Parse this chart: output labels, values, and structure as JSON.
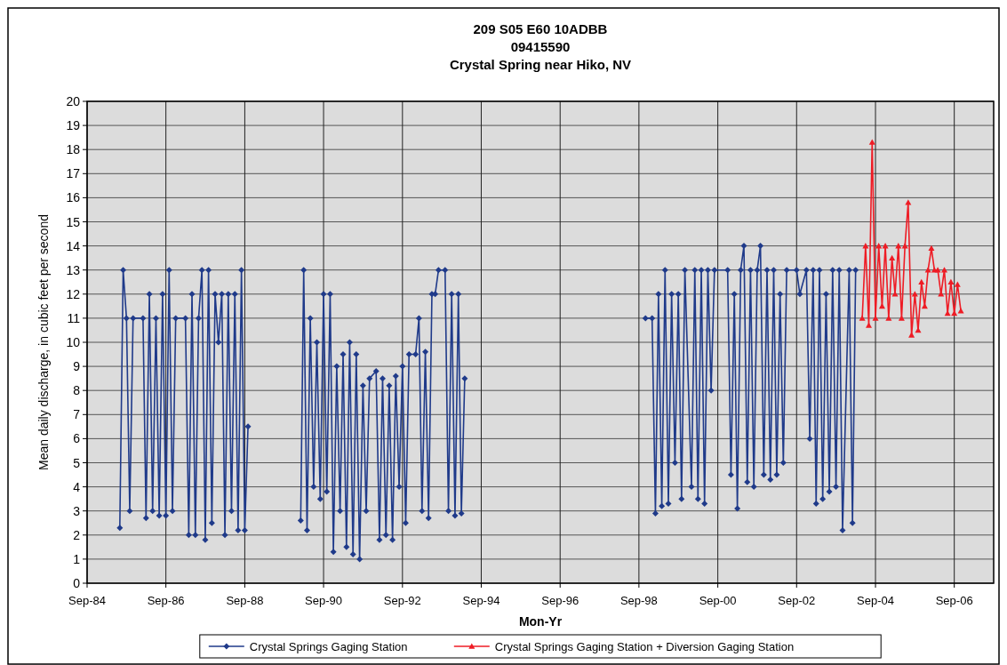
{
  "chart_data": {
    "type": "line",
    "title": "209 S05 E60 10ADBB\n09415590\nCrystal Spring near Hiko, NV",
    "xlabel": "Mon-Yr",
    "ylabel": "Mean daily discharge, in cubic feet per second",
    "xlim": [
      "1984-09",
      "2007-09"
    ],
    "xticks": [
      {
        "value": "1984-09",
        "label": "Sep-84"
      },
      {
        "value": "1986-09",
        "label": "Sep-86"
      },
      {
        "value": "1988-09",
        "label": "Sep-88"
      },
      {
        "value": "1990-09",
        "label": "Sep-90"
      },
      {
        "value": "1992-09",
        "label": "Sep-92"
      },
      {
        "value": "1994-09",
        "label": "Sep-94"
      },
      {
        "value": "1996-09",
        "label": "Sep-96"
      },
      {
        "value": "1998-09",
        "label": "Sep-98"
      },
      {
        "value": "2000-09",
        "label": "Sep-00"
      },
      {
        "value": "2002-09",
        "label": "Sep-02"
      },
      {
        "value": "2004-09",
        "label": "Sep-04"
      },
      {
        "value": "2006-09",
        "label": "Sep-06"
      }
    ],
    "ylim": [
      0,
      20
    ],
    "yticks": [
      0,
      1,
      2,
      3,
      4,
      5,
      6,
      7,
      8,
      9,
      10,
      11,
      12,
      13,
      14,
      15,
      16,
      17,
      18,
      19,
      20
    ],
    "grid": true,
    "legend": "bottom",
    "line_style": "solid",
    "series": [
      {
        "name": "Crystal Springs Gaging Station",
        "color": "#1f3a8a",
        "marker": "diamond",
        "x": [
          "1985-07",
          "1985-08",
          "1985-09",
          "1985-10",
          "1985-11",
          "1986-02",
          "1986-03",
          "1986-04",
          "1986-05",
          "1986-06",
          "1986-07",
          "1986-08",
          "1986-09",
          "1986-10",
          "1986-11",
          "1986-12",
          "1987-03",
          "1987-04",
          "1987-05",
          "1987-06",
          "1987-07",
          "1987-08",
          "1987-09",
          "1987-10",
          "1987-11",
          "1987-12",
          "1988-01",
          "1988-02",
          "1988-03",
          "1988-04",
          "1988-05",
          "1988-06",
          "1988-07",
          "1988-08",
          "1988-09",
          "1988-10",
          "1989-06",
          "1990-02",
          "1990-03",
          "1990-04",
          "1990-05",
          "1990-06",
          "1990-07",
          "1990-08",
          "1990-09",
          "1990-10",
          "1990-11",
          "1990-12",
          "1991-01",
          "1991-02",
          "1991-03",
          "1991-04",
          "1991-05",
          "1991-06",
          "1991-07",
          "1991-08",
          "1991-09",
          "1991-10",
          "1991-11",
          "1992-01",
          "1992-02",
          "1992-03",
          "1992-04",
          "1992-05",
          "1992-06",
          "1992-07",
          "1992-08",
          "1992-09",
          "1992-10",
          "1992-11",
          "1993-01",
          "1993-02",
          "1993-03",
          "1993-04",
          "1993-05",
          "1993-06",
          "1993-07",
          "1993-08",
          "1993-10",
          "1993-11",
          "1993-12",
          "1994-01",
          "1994-02",
          "1994-03",
          "1994-04",
          "1996-09",
          "1998-11",
          "1999-01",
          "1999-02",
          "1999-03",
          "1999-04",
          "1999-05",
          "1999-06",
          "1999-07",
          "1999-08",
          "1999-09",
          "1999-10",
          "1999-11",
          "2000-01",
          "2000-02",
          "2000-03",
          "2000-04",
          "2000-05",
          "2000-06",
          "2000-07",
          "2000-08",
          "2000-12",
          "2001-01",
          "2001-02",
          "2001-03",
          "2001-04",
          "2001-05",
          "2001-06",
          "2001-07",
          "2001-08",
          "2001-09",
          "2001-10",
          "2001-11",
          "2001-12",
          "2002-01",
          "2002-02",
          "2002-03",
          "2002-04",
          "2002-05",
          "2002-06",
          "2002-09",
          "2002-10",
          "2002-12",
          "2003-01",
          "2003-02",
          "2003-03",
          "2003-04",
          "2003-05",
          "2003-06",
          "2003-07",
          "2003-08",
          "2003-09",
          "2003-10",
          "2003-11",
          "2004-01",
          "2004-02",
          "2004-03"
        ],
        "values": [
          2.3,
          13,
          11,
          3,
          11,
          11,
          2.7,
          12,
          3,
          11,
          2.8,
          12,
          2.8,
          13,
          3,
          11,
          11,
          2,
          12,
          2,
          11,
          13,
          1.8,
          13,
          2.5,
          12,
          10,
          12,
          2,
          12,
          3,
          12,
          2.2,
          13,
          2.2,
          6.5,
          null,
          2.6,
          13,
          2.2,
          11,
          4,
          10,
          3.5,
          12,
          3.8,
          12,
          1.3,
          9,
          3,
          9.5,
          1.5,
          10,
          1.2,
          9.5,
          1,
          8.2,
          3,
          8.5,
          8.8,
          1.8,
          8.5,
          2,
          8.2,
          1.8,
          8.6,
          4,
          9,
          2.5,
          9.5,
          9.5,
          11,
          3,
          9.6,
          2.7,
          12,
          12,
          13,
          13,
          3,
          12,
          2.8,
          12,
          2.9,
          8.5,
          null,
          11,
          11,
          2.9,
          12,
          3.2,
          13,
          3.3,
          12,
          5,
          12,
          3.5,
          13,
          4,
          13,
          3.5,
          13,
          3.3,
          13,
          8,
          13,
          13,
          4.5,
          12,
          3.1,
          13,
          14,
          4.2,
          13,
          4,
          13,
          14,
          4.5,
          13,
          4.3,
          13,
          4.5,
          12,
          5,
          13,
          13,
          12,
          13,
          6,
          13,
          3.3,
          13,
          3.5,
          12,
          3.8,
          13,
          4,
          13,
          2.2,
          13,
          2.5,
          13
        ]
      },
      {
        "name": "Crystal Springs Gaging Station + Diversion Gaging Station",
        "color": "#ee1c25",
        "marker": "triangle",
        "x": [
          "2004-05",
          "2004-06",
          "2004-07",
          "2004-08",
          "2004-09",
          "2004-10",
          "2004-11",
          "2004-12",
          "2005-01",
          "2005-02",
          "2005-03",
          "2005-04",
          "2005-05",
          "2005-06",
          "2005-07",
          "2005-08",
          "2005-09",
          "2005-10",
          "2005-11",
          "2005-12",
          "2006-01",
          "2006-02",
          "2006-03",
          "2006-04",
          "2006-05",
          "2006-06",
          "2006-07",
          "2006-08",
          "2006-09",
          "2006-10",
          "2006-11"
        ],
        "values": [
          11,
          14,
          10.7,
          18.3,
          11,
          14,
          11.5,
          14,
          11,
          13.5,
          12,
          14,
          11,
          14,
          15.8,
          10.3,
          12,
          10.5,
          12.5,
          11.5,
          13,
          13.9,
          13,
          13,
          12,
          13,
          11.2,
          12.5,
          11.2,
          12.4,
          11.3
        ]
      }
    ]
  }
}
